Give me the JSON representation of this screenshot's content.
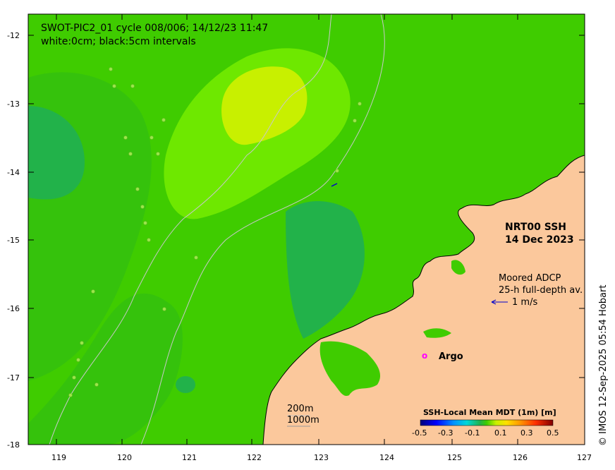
{
  "title": {
    "line1": "SWOT-PIC2_01 cycle 008/006; 14/12/23 11:47",
    "line2": "white:0cm; black:5cm intervals"
  },
  "product": {
    "line1": "NRT00 SSH",
    "line2": "14 Dec 2023"
  },
  "adcp": {
    "line1": "Moored ADCP",
    "line2": "25-h full-depth av.",
    "scale": "1 m/s"
  },
  "argo": {
    "marker": "o",
    "label": "Argo"
  },
  "depth_legend": {
    "line1": "200m",
    "line2": "1000m"
  },
  "colorbar": {
    "title": "SSH-Local Mean MDT (1m) [m]",
    "ticks": [
      "-0.5",
      "-0.3",
      "-0.1",
      "0.1",
      "0.3",
      "0.5"
    ],
    "range": [
      -0.5,
      0.5
    ]
  },
  "axes": {
    "lon_ticks": [
      "119",
      "120",
      "121",
      "122",
      "123",
      "124",
      "125",
      "126",
      "127"
    ],
    "lat_ticks": [
      "-12",
      "-13",
      "-14",
      "-15",
      "-16",
      "-17",
      "-18"
    ],
    "lon_range": [
      118.65,
      127.0
    ],
    "lat_range": [
      -18.0,
      -11.75
    ]
  },
  "credit": "© IMOS 12-Sep-2025 05:54 Hobart",
  "colors": {
    "ocean_base": "#3fcc00",
    "land": "#fbc89c",
    "high_ssh": "#c8f000",
    "low_ssh": "#22b24a",
    "argo": "#ff00ff",
    "arrow": "#0000cc"
  }
}
